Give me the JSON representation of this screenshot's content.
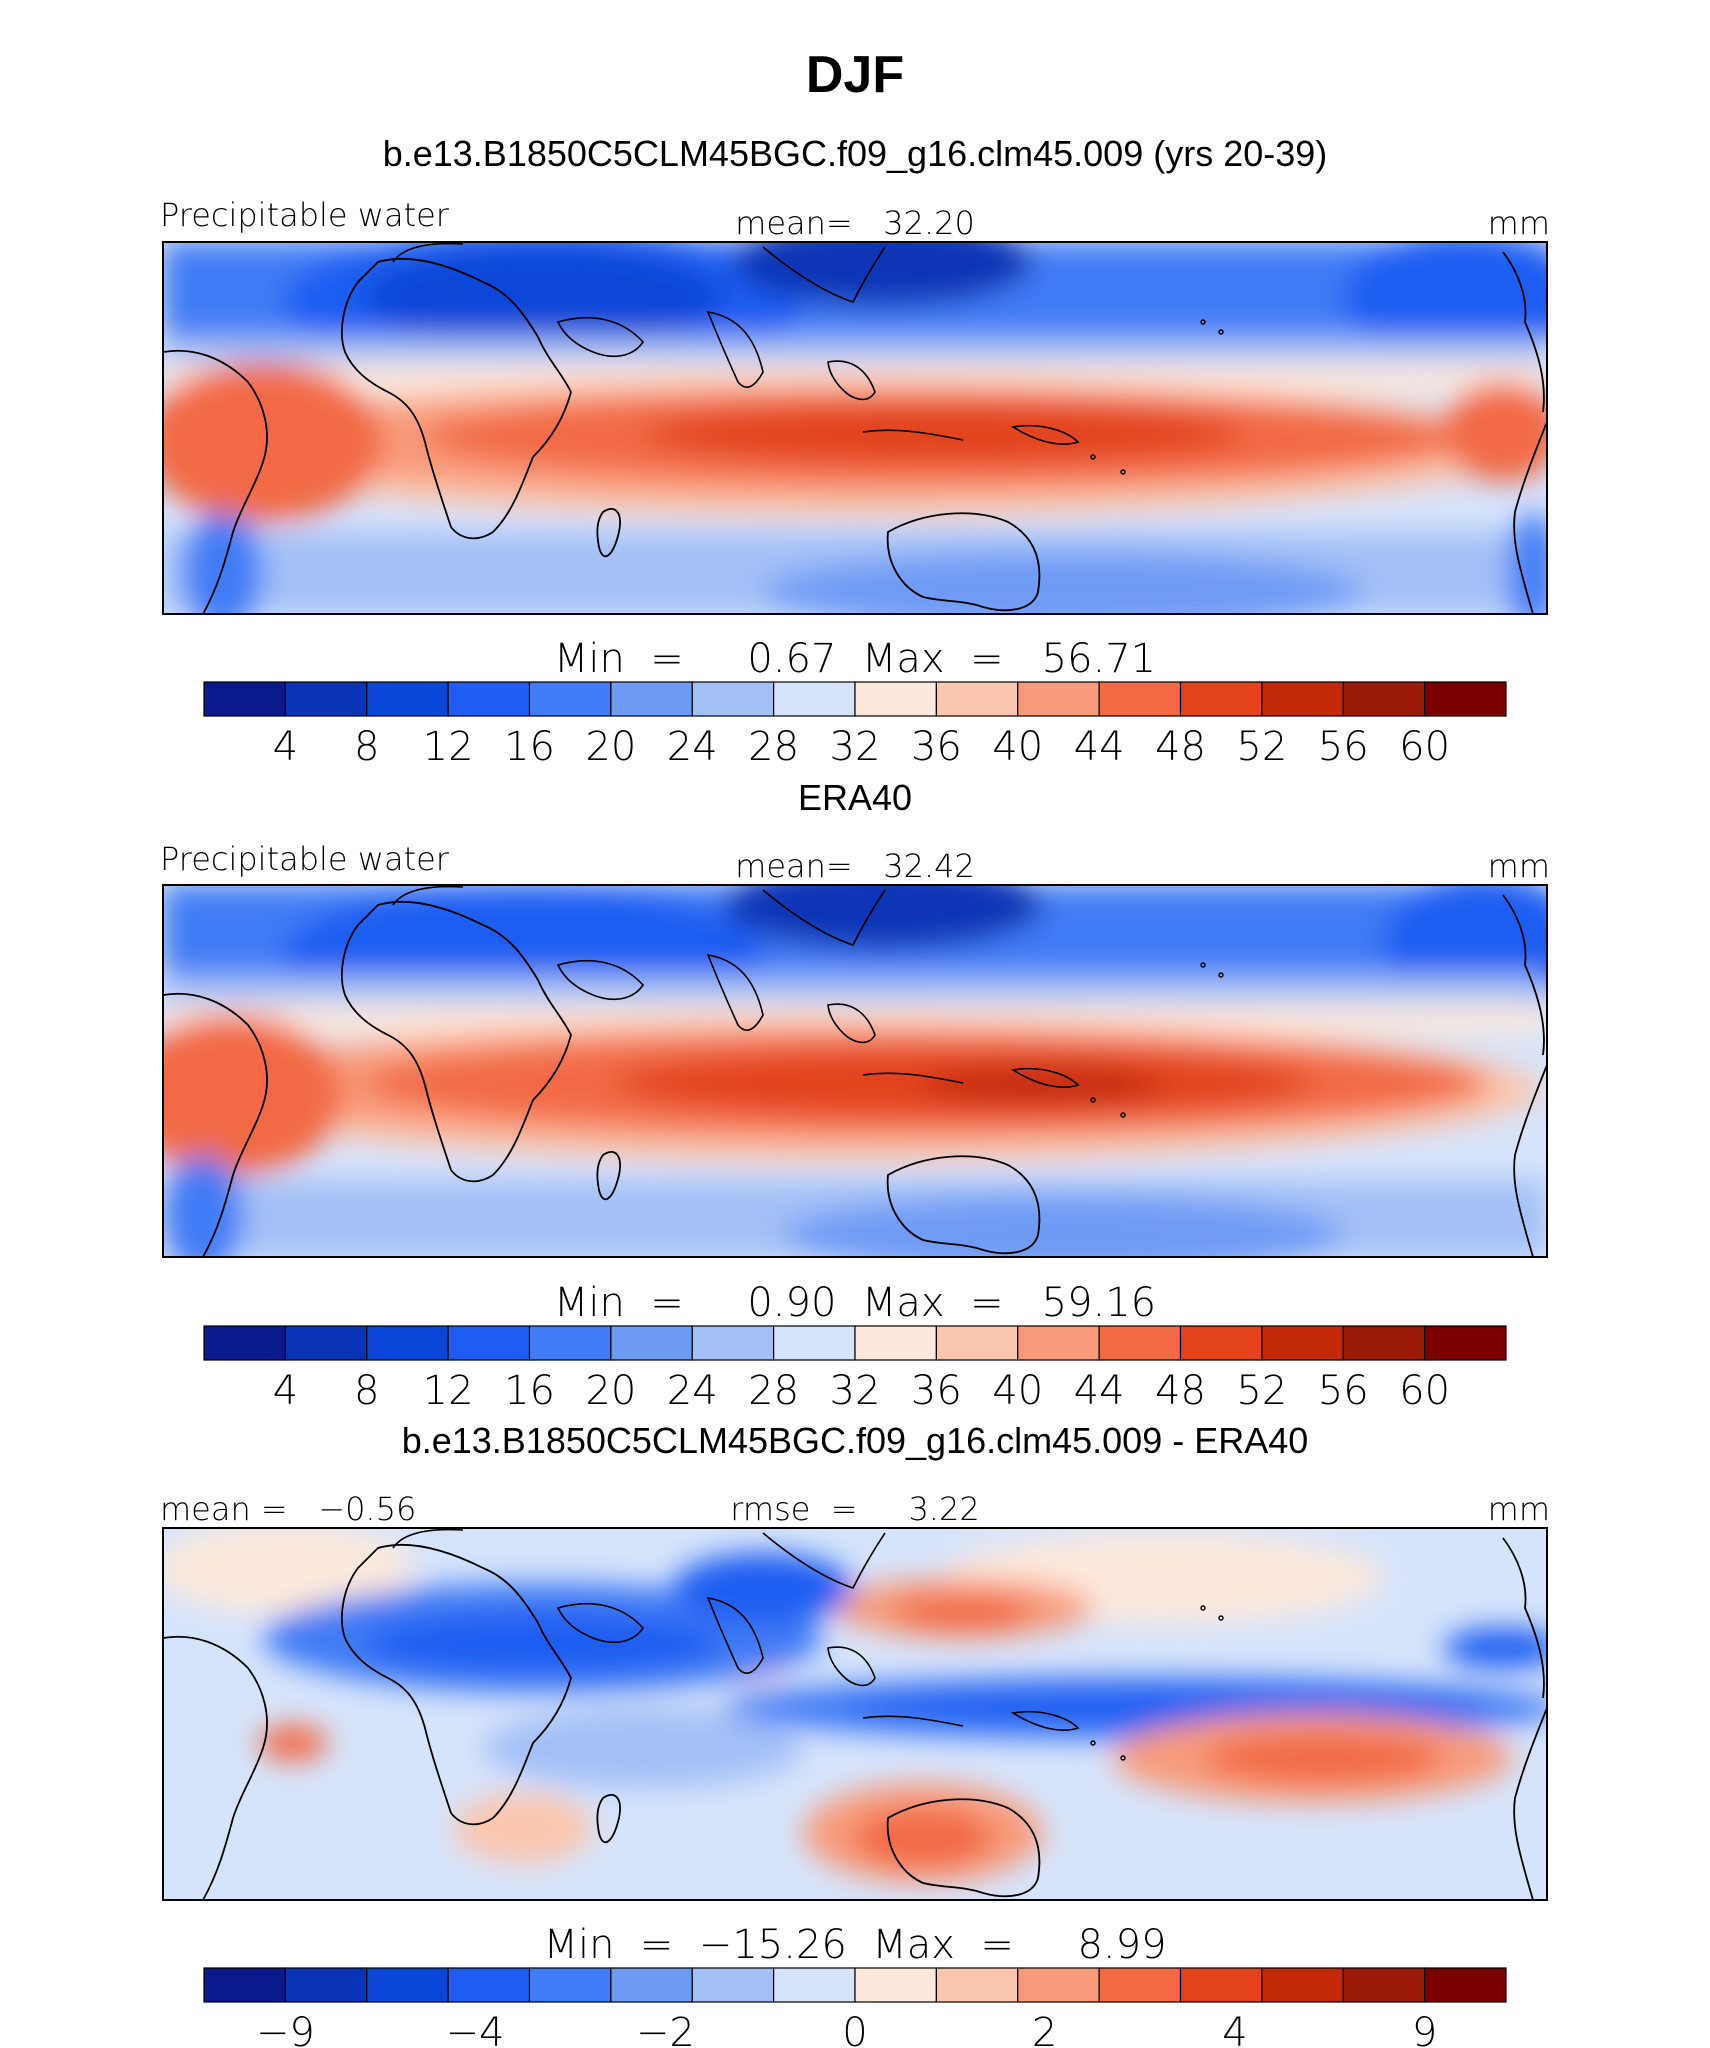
{
  "figure": {
    "title": "DJF"
  },
  "colors": {
    "level_colors": [
      "#0a1a8c",
      "#0a34b6",
      "#0a46d8",
      "#1f5df2",
      "#3f7cf5",
      "#6f9bf5",
      "#a3c0f7",
      "#d6e4fb",
      "#fde9dc",
      "#fbc6ae",
      "#f89b7a",
      "#f26b45",
      "#e2431a",
      "#c32a0a",
      "#9c1a08",
      "#7a0000"
    ],
    "diff_colors": [
      "#0a1a8c",
      "#0a34b6",
      "#0a46d8",
      "#1f5df2",
      "#3f7cf5",
      "#6f9bf5",
      "#a3c0f7",
      "#d6e4fb",
      "#fde9dc",
      "#fbc6ae",
      "#f89b7a",
      "#f26b45",
      "#e2431a",
      "#c32a0a",
      "#9c1a08",
      "#7a0000"
    ],
    "land_outline": "#000000"
  },
  "chart_data": [
    {
      "type": "heatmap",
      "title": "b.e13.B1850C5CLM45BGC.f09_g16.clm45.009 (yrs 20-39)",
      "left_label": "Precipitable water",
      "center_label": "mean=   32.20",
      "units": "mm",
      "stats": "Min  =     0.67  Max  =   56.71",
      "colorbar_ticks": [
        "4",
        "8",
        "12",
        "16",
        "20",
        "24",
        "28",
        "32",
        "36",
        "40",
        "44",
        "48",
        "52",
        "56",
        "60"
      ],
      "levels": [
        4,
        8,
        12,
        16,
        20,
        24,
        28,
        32,
        36,
        40,
        44,
        48,
        52,
        56,
        60
      ]
    },
    {
      "type": "heatmap",
      "title": "ERA40",
      "left_label": "Precipitable water",
      "center_label": "mean=   32.42",
      "units": "mm",
      "stats": "Min  =     0.90  Max  =   59.16",
      "colorbar_ticks": [
        "4",
        "8",
        "12",
        "16",
        "20",
        "24",
        "28",
        "32",
        "36",
        "40",
        "44",
        "48",
        "52",
        "56",
        "60"
      ],
      "levels": [
        4,
        8,
        12,
        16,
        20,
        24,
        28,
        32,
        36,
        40,
        44,
        48,
        52,
        56,
        60
      ]
    },
    {
      "type": "heatmap",
      "title": "b.e13.B1850C5CLM45BGC.f09_g16.clm45.009 - ERA40",
      "left_label": "mean =   −0.56",
      "center_label": "rmse  =     3.22",
      "units": "mm",
      "stats": "Min  =  −15.26  Max  =     8.99",
      "colorbar_ticks": [
        "−9",
        "−4",
        "−2",
        "0",
        "2",
        "4",
        "9"
      ],
      "levels": [
        -9,
        -4,
        -2,
        0,
        2,
        4,
        9
      ]
    }
  ]
}
